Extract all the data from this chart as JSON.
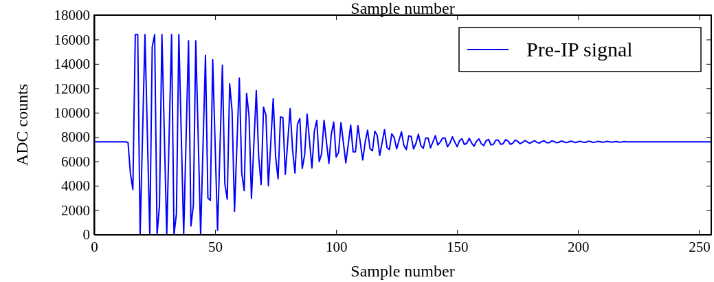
{
  "chart_data": {
    "type": "line",
    "title": "Sample number",
    "xlabel": "Sample number",
    "ylabel": "ADC counts",
    "xlim": [
      0,
      255
    ],
    "xticks": [
      0,
      50,
      100,
      150,
      200,
      250
    ],
    "ylim": [
      0,
      18000
    ],
    "yticks": [
      0,
      2000,
      4000,
      6000,
      8000,
      10000,
      12000,
      14000,
      16000,
      18000
    ],
    "grid": false,
    "legend": "top right",
    "marker": "none",
    "line_style": "solid",
    "series": [
      {
        "name": "Pre-IP signal",
        "color": "#0000ff",
        "x": [
          0,
          13,
          14,
          15,
          16,
          17,
          18,
          19,
          21,
          23,
          24,
          25,
          26,
          27,
          28,
          30,
          32,
          33,
          34,
          35,
          37,
          39,
          40,
          41,
          42,
          44,
          46,
          47,
          48,
          49,
          51,
          53,
          54,
          55,
          56,
          57,
          58,
          60,
          61,
          62,
          63,
          64,
          65,
          67,
          68,
          69,
          70,
          71,
          72,
          74,
          75,
          76,
          77,
          78,
          79,
          81,
          82,
          83,
          84,
          85,
          86,
          87,
          88,
          90,
          91,
          92,
          93,
          94,
          95,
          97,
          98,
          99,
          100,
          101,
          102,
          104,
          105,
          106,
          107,
          108,
          109,
          111,
          112,
          113,
          114,
          115,
          116,
          117,
          118,
          120,
          121,
          122,
          123,
          124,
          125,
          127,
          128,
          129,
          130,
          131,
          132,
          133,
          134,
          135,
          136,
          137,
          138,
          139,
          141,
          142,
          143,
          144,
          145,
          146,
          147,
          148,
          150,
          151,
          152,
          153,
          154,
          155,
          156,
          157,
          158,
          159,
          160,
          161,
          162,
          163,
          164,
          165,
          166,
          167,
          168,
          169,
          170,
          171,
          172,
          173,
          174,
          175,
          176,
          177,
          178,
          179,
          180,
          181,
          182,
          183,
          184,
          185,
          186,
          187,
          188,
          189,
          190,
          191,
          192,
          193,
          194,
          195,
          196,
          197,
          198,
          199,
          200,
          201,
          202,
          203,
          204,
          205,
          206,
          207,
          208,
          209,
          210,
          211,
          212,
          213,
          214,
          215,
          216,
          217,
          218,
          219,
          220,
          225,
          230,
          235,
          240,
          245,
          250,
          255
        ],
        "values": [
          7600,
          7600,
          7550,
          5000,
          3700,
          16400,
          16400,
          0,
          16400,
          0,
          15400,
          16400,
          0,
          2400,
          16400,
          0,
          16400,
          0,
          1700,
          16400,
          0,
          15900,
          700,
          2400,
          15900,
          0,
          14700,
          3000,
          2800,
          14350,
          350,
          13900,
          4200,
          2900,
          12370,
          10120,
          1900,
          12840,
          5040,
          3600,
          11580,
          9740,
          2970,
          11810,
          6360,
          4100,
          10450,
          9780,
          4010,
          11150,
          6360,
          4570,
          9650,
          9590,
          4950,
          10340,
          6920,
          5040,
          9030,
          9510,
          5420,
          6550,
          9870,
          5460,
          8480,
          9370,
          5980,
          6640,
          9370,
          5830,
          8240,
          9220,
          6360,
          6730,
          9180,
          5880,
          7390,
          8990,
          6790,
          6790,
          8930,
          6120,
          7580,
          8560,
          7050,
          6870,
          8480,
          8110,
          6490,
          8610,
          7140,
          6970,
          8270,
          7960,
          7020,
          8430,
          7300,
          6970,
          8090,
          8050,
          7020,
          7490,
          8240,
          7300,
          7070,
          7920,
          7920,
          7110,
          8110,
          7350,
          7580,
          7920,
          7920,
          7200,
          7490,
          8010,
          7200,
          7710,
          7860,
          7390,
          7490,
          7900,
          7500,
          7250,
          7650,
          7850,
          7450,
          7300,
          7700,
          7800,
          7350,
          7400,
          7750,
          7750,
          7400,
          7450,
          7780,
          7680,
          7400,
          7500,
          7750,
          7650,
          7450,
          7550,
          7720,
          7600,
          7480,
          7600,
          7700,
          7560,
          7500,
          7650,
          7680,
          7530,
          7530,
          7670,
          7650,
          7530,
          7560,
          7670,
          7620,
          7540,
          7590,
          7660,
          7600,
          7550,
          7620,
          7650,
          7570,
          7560,
          7640,
          7640,
          7560,
          7580,
          7640,
          7620,
          7570,
          7600,
          7640,
          7600,
          7570,
          7620,
          7630,
          7580,
          7590,
          7630,
          7610,
          7600,
          7610,
          7600,
          7600,
          7600,
          7600,
          7600
        ]
      }
    ]
  }
}
